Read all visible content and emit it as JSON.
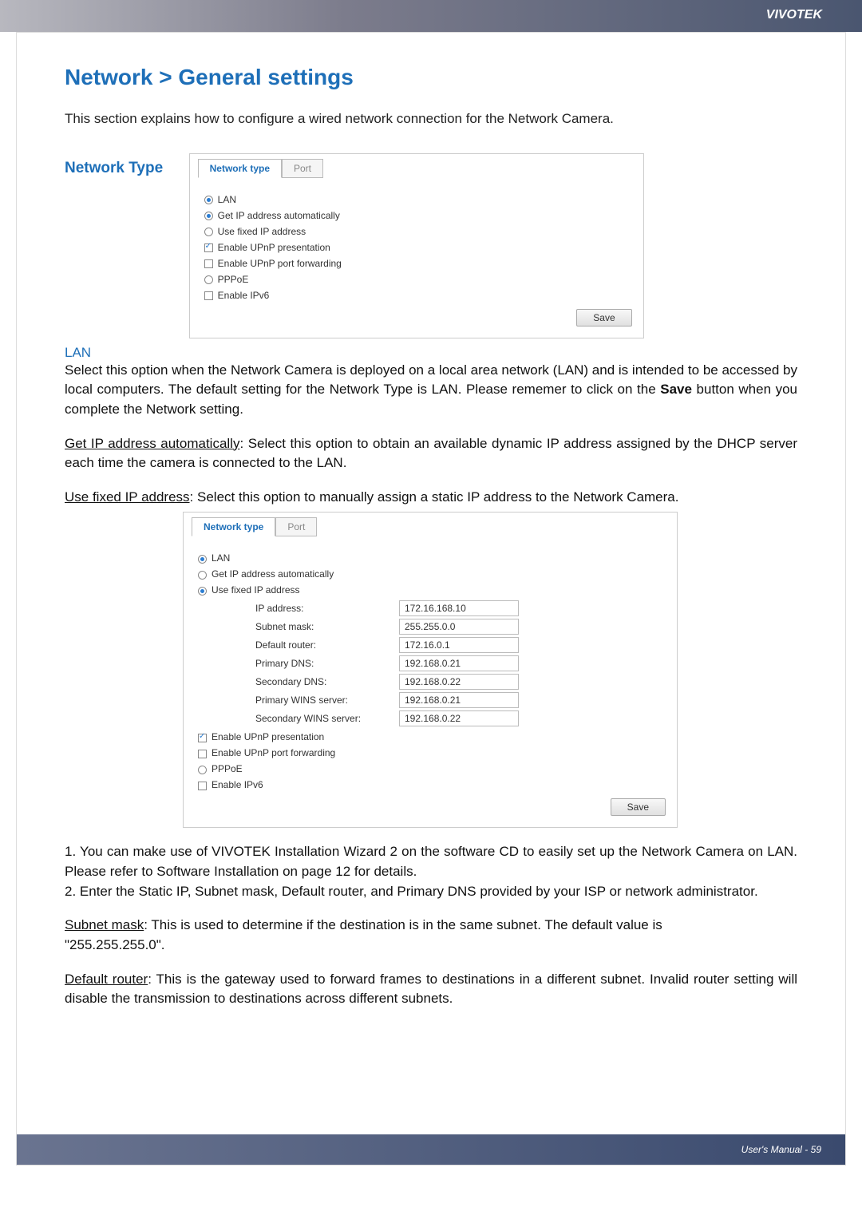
{
  "header_brand": "VIVOTEK",
  "title": "Network > General settings",
  "intro": "This section explains how to configure a wired network connection for the Network Camera.",
  "section_network_type": "Network Type",
  "tabs": {
    "network_type": "Network type",
    "port": "Port"
  },
  "panel1": {
    "lan": "LAN",
    "get_ip": "Get IP address automatically",
    "use_fixed": "Use fixed IP address",
    "upnp_pres": "Enable UPnP presentation",
    "upnp_port": "Enable UPnP port forwarding",
    "pppoe": "PPPoE",
    "ipv6": "Enable IPv6",
    "save": "Save"
  },
  "lan_heading": "LAN",
  "lan_para": "Select this option when the Network Camera is deployed on a local area network (LAN) and is intended to be accessed by local computers. The default setting for the Network Type is LAN. Please rememer to click on the ",
  "lan_para_bold": "Save",
  "lan_para_tail": " button when you complete the Network setting.",
  "get_ip_u": "Get IP address automatically",
  "get_ip_rest": ": Select this option to obtain an available dynamic IP address assigned by the DHCP server each time the camera is connected to the LAN.",
  "use_fixed_u": "Use fixed IP address",
  "use_fixed_rest": ": Select this option to manually assign a static IP address to the Network Camera.",
  "panel2": {
    "lan": "LAN",
    "get_ip": "Get IP address automatically",
    "use_fixed": "Use fixed IP address",
    "rows": [
      {
        "k": "IP address:",
        "v": "172.16.168.10"
      },
      {
        "k": "Subnet mask:",
        "v": "255.255.0.0"
      },
      {
        "k": "Default router:",
        "v": "172.16.0.1"
      },
      {
        "k": "Primary DNS:",
        "v": "192.168.0.21"
      },
      {
        "k": "Secondary DNS:",
        "v": "192.168.0.22"
      },
      {
        "k": "Primary WINS server:",
        "v": "192.168.0.21"
      },
      {
        "k": "Secondary WINS server:",
        "v": "192.168.0.22"
      }
    ],
    "upnp_pres": "Enable UPnP presentation",
    "upnp_port": "Enable UPnP port forwarding",
    "pppoe": "PPPoE",
    "ipv6": "Enable IPv6",
    "save": "Save"
  },
  "list1": "1. You can make use of VIVOTEK Installation Wizard 2 on the software CD to easily set up the Network Camera on LAN. Please refer to Software Installation on page 12 for details.",
  "list2": "2. Enter the Static IP, Subnet mask, Default router, and Primary DNS provided by your ISP or network administrator.",
  "subnet_u": "Subnet mask",
  "subnet_rest": ": This is used to determine if the destination is in the same subnet. The default value is",
  "subnet_val": "\"255.255.255.0\".",
  "router_u": "Default router",
  "router_rest": ": This is the gateway used to forward frames to destinations in a different subnet. Invalid router setting will disable the transmission to destinations across different subnets.",
  "footer": "User's Manual - 59"
}
